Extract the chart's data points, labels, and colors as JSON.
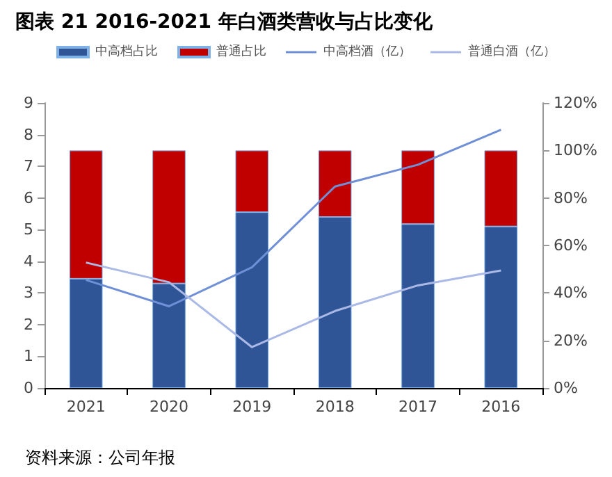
{
  "chart_data": {
    "type": "bar",
    "title": "图表 21 2016-2021 年白酒类营收与占比变化",
    "categories": [
      "2021",
      "2020",
      "2019",
      "2018",
      "2017",
      "2016"
    ],
    "stacked": true,
    "series": [
      {
        "name": "中高档占比",
        "axis": "y2",
        "color": "#2f5597",
        "values": [
          46,
          44,
          74,
          72,
          69,
          68
        ]
      },
      {
        "name": "普通占比",
        "axis": "y2",
        "color": "#c00000",
        "values": [
          54,
          56,
          26,
          28,
          31,
          32
        ]
      },
      {
        "name": "中高档酒（亿）",
        "type": "line",
        "color": "#6f8fd6",
        "values": [
          3.41,
          2.58,
          3.81,
          6.36,
          7.05,
          8.15
        ]
      },
      {
        "name": "普通白酒（亿）",
        "type": "line",
        "color": "#aab9e6",
        "values": [
          3.96,
          3.34,
          1.29,
          2.43,
          3.24,
          3.71
        ]
      }
    ],
    "ylim": [
      0,
      9
    ],
    "yticks": [
      0,
      1,
      2,
      3,
      4,
      5,
      6,
      7,
      8,
      9
    ],
    "y2lim": [
      0,
      120
    ],
    "y2ticks": [
      {
        "value": 0,
        "label": "0%"
      },
      {
        "value": 20,
        "label": "20%"
      },
      {
        "value": 40,
        "label": "40%"
      },
      {
        "value": 60,
        "label": "60%"
      },
      {
        "value": 80,
        "label": "80%"
      },
      {
        "value": 100,
        "label": "100%"
      },
      {
        "value": 120,
        "label": "120%"
      }
    ],
    "legend": "top",
    "grid": false,
    "marker": "none",
    "line_style": "solid",
    "annotations": [
      "资料来源：公司年报"
    ]
  }
}
